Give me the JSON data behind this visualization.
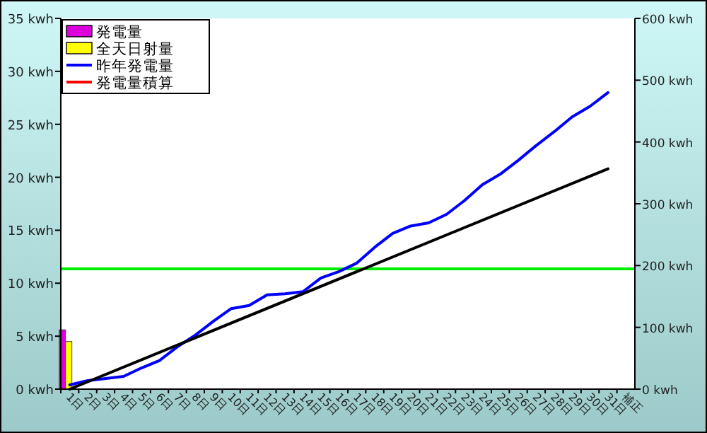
{
  "chart_data": {
    "type": "bar",
    "categories": [
      "1日",
      "2日",
      "3日",
      "4日",
      "5日",
      "6日",
      "7日",
      "8日",
      "9日",
      "10日",
      "11日",
      "12日",
      "13日",
      "14日",
      "15日",
      "16日",
      "17日",
      "18日",
      "19日",
      "20日",
      "21日",
      "22日",
      "23日",
      "24日",
      "25日",
      "26日",
      "27日",
      "28日",
      "29日",
      "30日",
      "31日",
      "補正"
    ],
    "series": [
      {
        "name": "発電量",
        "color": "#dd00dd",
        "values": [
          5.6,
          null,
          null,
          null,
          null,
          null,
          null,
          null,
          null,
          null,
          null,
          null,
          null,
          null,
          null,
          null,
          null,
          null,
          null,
          null,
          null,
          null,
          null,
          null,
          null,
          null,
          null,
          null,
          null,
          null,
          null,
          null
        ]
      },
      {
        "name": "全天日射量",
        "color": "#ffff00",
        "values": [
          4.5,
          null,
          null,
          null,
          null,
          null,
          null,
          null,
          null,
          null,
          null,
          null,
          null,
          null,
          null,
          null,
          null,
          null,
          null,
          null,
          null,
          null,
          null,
          null,
          null,
          null,
          null,
          null,
          null,
          null,
          null,
          null
        ]
      },
      {
        "name": "昨年発電量",
        "type": "line",
        "color": "#0000ff",
        "values": [
          0.4,
          0.8,
          1.0,
          1.2,
          2.0,
          2.7,
          4.0,
          5.1,
          6.4,
          7.6,
          7.9,
          8.9,
          9.0,
          9.2,
          10.5,
          11.1,
          11.9,
          13.4,
          14.7,
          15.4,
          15.7,
          16.5,
          17.8,
          19.3,
          20.3,
          21.6,
          23.0,
          24.3,
          25.7,
          26.7,
          28.0,
          null
        ]
      },
      {
        "name": "発電量積算",
        "type": "line",
        "color": "#ff0000",
        "values": [
          null,
          null,
          null,
          null,
          null,
          null,
          null,
          null,
          null,
          null,
          null,
          null,
          null,
          null,
          null,
          null,
          null,
          null,
          null,
          null,
          null,
          null,
          null,
          null,
          null,
          null,
          null,
          null,
          null,
          null,
          null,
          null
        ]
      },
      {
        "type": "line",
        "color": "#000000",
        "x": [
          "1日",
          "31日"
        ],
        "values": [
          0,
          20.8
        ]
      }
    ],
    "ylim": [
      0,
      35
    ],
    "yticks": [
      {
        "value": 0,
        "label": "0 kwh"
      },
      {
        "value": 5,
        "label": "5 kwh"
      },
      {
        "value": 10,
        "label": "10 kwh"
      },
      {
        "value": 15,
        "label": "15 kwh"
      },
      {
        "value": 20,
        "label": "20 kwh"
      },
      {
        "value": 25,
        "label": "25 kwh"
      },
      {
        "value": 30,
        "label": "30 kwh"
      },
      {
        "value": 35,
        "label": "35 kwh"
      }
    ],
    "y2lim": [
      0,
      600
    ],
    "y2ticks": [
      {
        "value": 0,
        "label": "0 kwh"
      },
      {
        "value": 100,
        "label": "100 kwh"
      },
      {
        "value": 200,
        "label": "200 kwh"
      },
      {
        "value": 300,
        "label": "300 kwh"
      },
      {
        "value": 400,
        "label": "400 kwh"
      },
      {
        "value": 500,
        "label": "500 kwh"
      },
      {
        "value": 600,
        "label": "600 kwh"
      }
    ],
    "ref_lines": [
      {
        "axis": "y",
        "value": 11.35,
        "color": "#00ee00"
      }
    ],
    "legend": "top left",
    "grid": false
  }
}
